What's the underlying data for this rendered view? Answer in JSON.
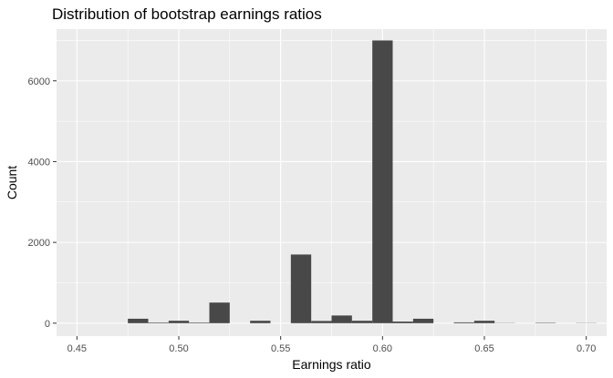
{
  "chart_data": {
    "type": "bar",
    "title": "Distribution of bootstrap earnings ratios",
    "xlabel": "Earnings ratio",
    "ylabel": "Count",
    "xlim": [
      0.44,
      0.71
    ],
    "ylim": [
      -320,
      7280
    ],
    "x_ticks": [
      0.45,
      0.5,
      0.55,
      0.6,
      0.65,
      0.7
    ],
    "x_tick_labels": [
      "0.45",
      "0.50",
      "0.55",
      "0.60",
      "0.65",
      "0.70"
    ],
    "y_ticks": [
      0,
      2000,
      4000,
      6000
    ],
    "y_tick_labels": [
      "0",
      "2000",
      "4000",
      "6000"
    ],
    "bin_width": 0.01,
    "bin_centers": [
      0.45,
      0.46,
      0.47,
      0.48,
      0.49,
      0.5,
      0.51,
      0.52,
      0.53,
      0.54,
      0.55,
      0.56,
      0.57,
      0.58,
      0.59,
      0.6,
      0.61,
      0.62,
      0.63,
      0.64,
      0.65,
      0.66,
      0.67,
      0.68,
      0.69,
      0.7
    ],
    "values": [
      0,
      0,
      0,
      110,
      15,
      60,
      15,
      510,
      0,
      60,
      0,
      1700,
      55,
      190,
      60,
      7000,
      40,
      110,
      0,
      20,
      60,
      5,
      0,
      10,
      0,
      5
    ],
    "grid": true,
    "panel_background": "#ebebeb",
    "bar_color": "#484848",
    "grid_color": "#ffffff"
  }
}
